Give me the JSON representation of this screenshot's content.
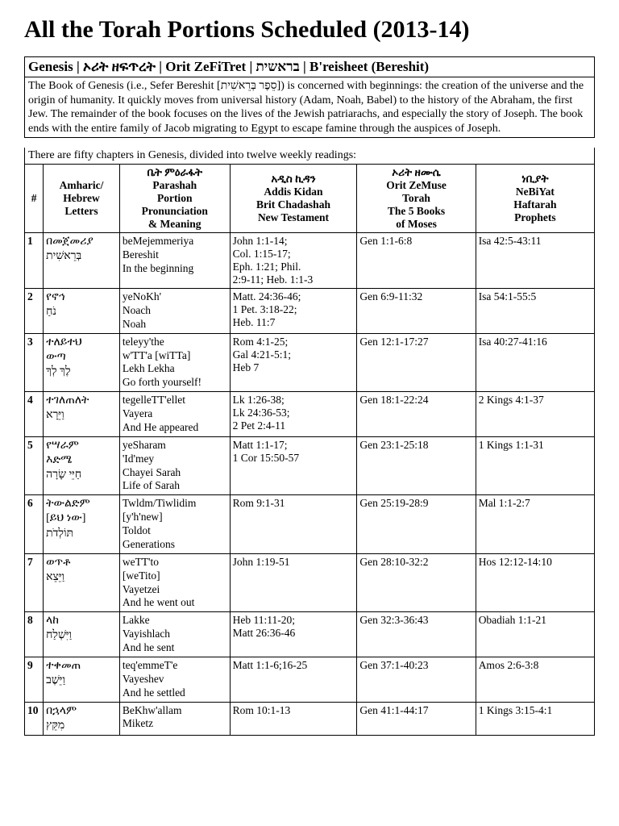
{
  "title": "All the Torah Portions Scheduled (2013-14)",
  "book_header": "Genesis | ኦሪት ዘፍጥረት | Orit ZeFiTret | בראשית | B'reisheet (Bereshit)",
  "book_desc": "The Book of Genesis (i.e., Sefer Bereshit [סֵפֶר בְּרֵאשִׁית]) is concerned with beginnings: the creation of the universe and the origin of humanity. It quickly moves from universal history (Adam, Noah, Babel) to the history of the Abraham, the first Jew. The remainder of the book focuses on the lives of the Jewish patriarachs, and especially the story of Joseph. The book ends with the entire family of Jacob migrating to Egypt to escape famine through the auspices of Joseph.",
  "sub_intro": "There are fifty chapters in Genesis, divided into twelve weekly readings:",
  "columns": {
    "num": "#",
    "letters": "Amharic/\nHebrew\nLetters",
    "portion": "ቤት ምዕራፋት\nParashah\nPortion\nPronunciation\n& Meaning",
    "nt": "አዲስ ኪዳን\nAddis Kidan\nBrit Chadashah\nNew Testament",
    "torah": "ኦሪት ዘሙሴ\nOrit ZeMuse\nTorah\nThe 5 Books\nof Moses",
    "prophets": "ነቢያት\nNeBiYat\nHaftarah\nProphets"
  },
  "rows": [
    {
      "num": "1",
      "letters": "በመጀመሪያ\nבְּרֵאשִׁית",
      "portion": "beMejemmeriya\nBereshit\nIn the beginning",
      "nt": "John 1:1-14;\nCol. 1:15-17;\nEph. 1:21; Phil.\n2:9-11; Heb. 1:1-3",
      "torah": "Gen 1:1-6:8",
      "prophets": "Isa 42:5-43:11"
    },
    {
      "num": "2",
      "letters": "የኖኅ\nנֹחַ",
      "portion": "yeNoKh'\nNoach\nNoah",
      "nt": "Matt. 24:36-46;\n1 Pet. 3:18-22;\nHeb. 11:7",
      "torah": "Gen 6:9-11:32",
      "prophets": "Isa 54:1-55:5"
    },
    {
      "num": "3",
      "letters": "ተለይተህ\nውጣ\nלֶךְ לְךָ",
      "portion": "teleyy'the\nw'TT'a [wiTTa]\nLekh Lekha\nGo forth yourself!",
      "nt": "Rom 4:1-25;\nGal 4:21-5:1;\nHeb 7",
      "torah": "Gen 12:1-17:27",
      "prophets": "Isa 40:27-41:16"
    },
    {
      "num": "4",
      "letters": "ተገለጠለት\nוַיֵּרָא",
      "portion": "tegelleTT'ellet\nVayera\nAnd He appeared",
      "nt": "Lk 1:26-38;\nLk 24:36-53;\n2 Pet 2:4-11",
      "torah": "Gen 18:1-22:24",
      "prophets": "2 Kings 4:1-37"
    },
    {
      "num": "5",
      "letters": "የሣራም\nእድሜ\nחַיֵּי שָׂרָה",
      "portion": "yeSharam\n'Id'mey\nChayei Sarah\nLife of Sarah",
      "nt": "Matt 1:1-17;\n1 Cor 15:50-57",
      "torah": "Gen 23:1-25:18",
      "prophets": "1 Kings 1:1-31"
    },
    {
      "num": "6",
      "letters": "ትውልድም\n[ይህ ነው]\nתּוֹלְדֹת",
      "portion": "Twldm/Tiwlidim\n[y'h'new]\nToldot\nGenerations",
      "nt": "Rom 9:1-31",
      "torah": "Gen 25:19-28:9",
      "prophets": "Mal 1:1-2:7"
    },
    {
      "num": "7",
      "letters": "ወጥቶ\nוַיֵּצֵא",
      "portion": "weTT'to\n[weTito]\nVayetzei\nAnd he went out",
      "nt": "John 1:19-51",
      "torah": "Gen 28:10-32:2",
      "prophets": "Hos 12:12-14:10"
    },
    {
      "num": "8",
      "letters": "ላከ\nוַיִּשְׁלַח",
      "portion": "Lakke\nVayishlach\nAnd he sent",
      "nt": "Heb 11:11-20;\nMatt 26:36-46",
      "torah": "Gen 32:3-36:43",
      "prophets": "Obadiah 1:1-21"
    },
    {
      "num": "9",
      "letters": "ተቀመጠ\nוַיֵּשֶׁב",
      "portion": "teq'emmeT'e\nVayeshev\nAnd he settled",
      "nt": "Matt 1:1-6;16-25",
      "torah": "Gen 37:1-40:23",
      "prophets": "Amos 2:6-3:8"
    },
    {
      "num": "10",
      "letters": "በኋላም\nמִקֵּץ",
      "portion": "BeKhw'allam\nMiketz",
      "nt": "Rom 10:1-13",
      "torah": "Gen 41:1-44:17",
      "prophets": "1 Kings 3:15-4:1"
    }
  ]
}
